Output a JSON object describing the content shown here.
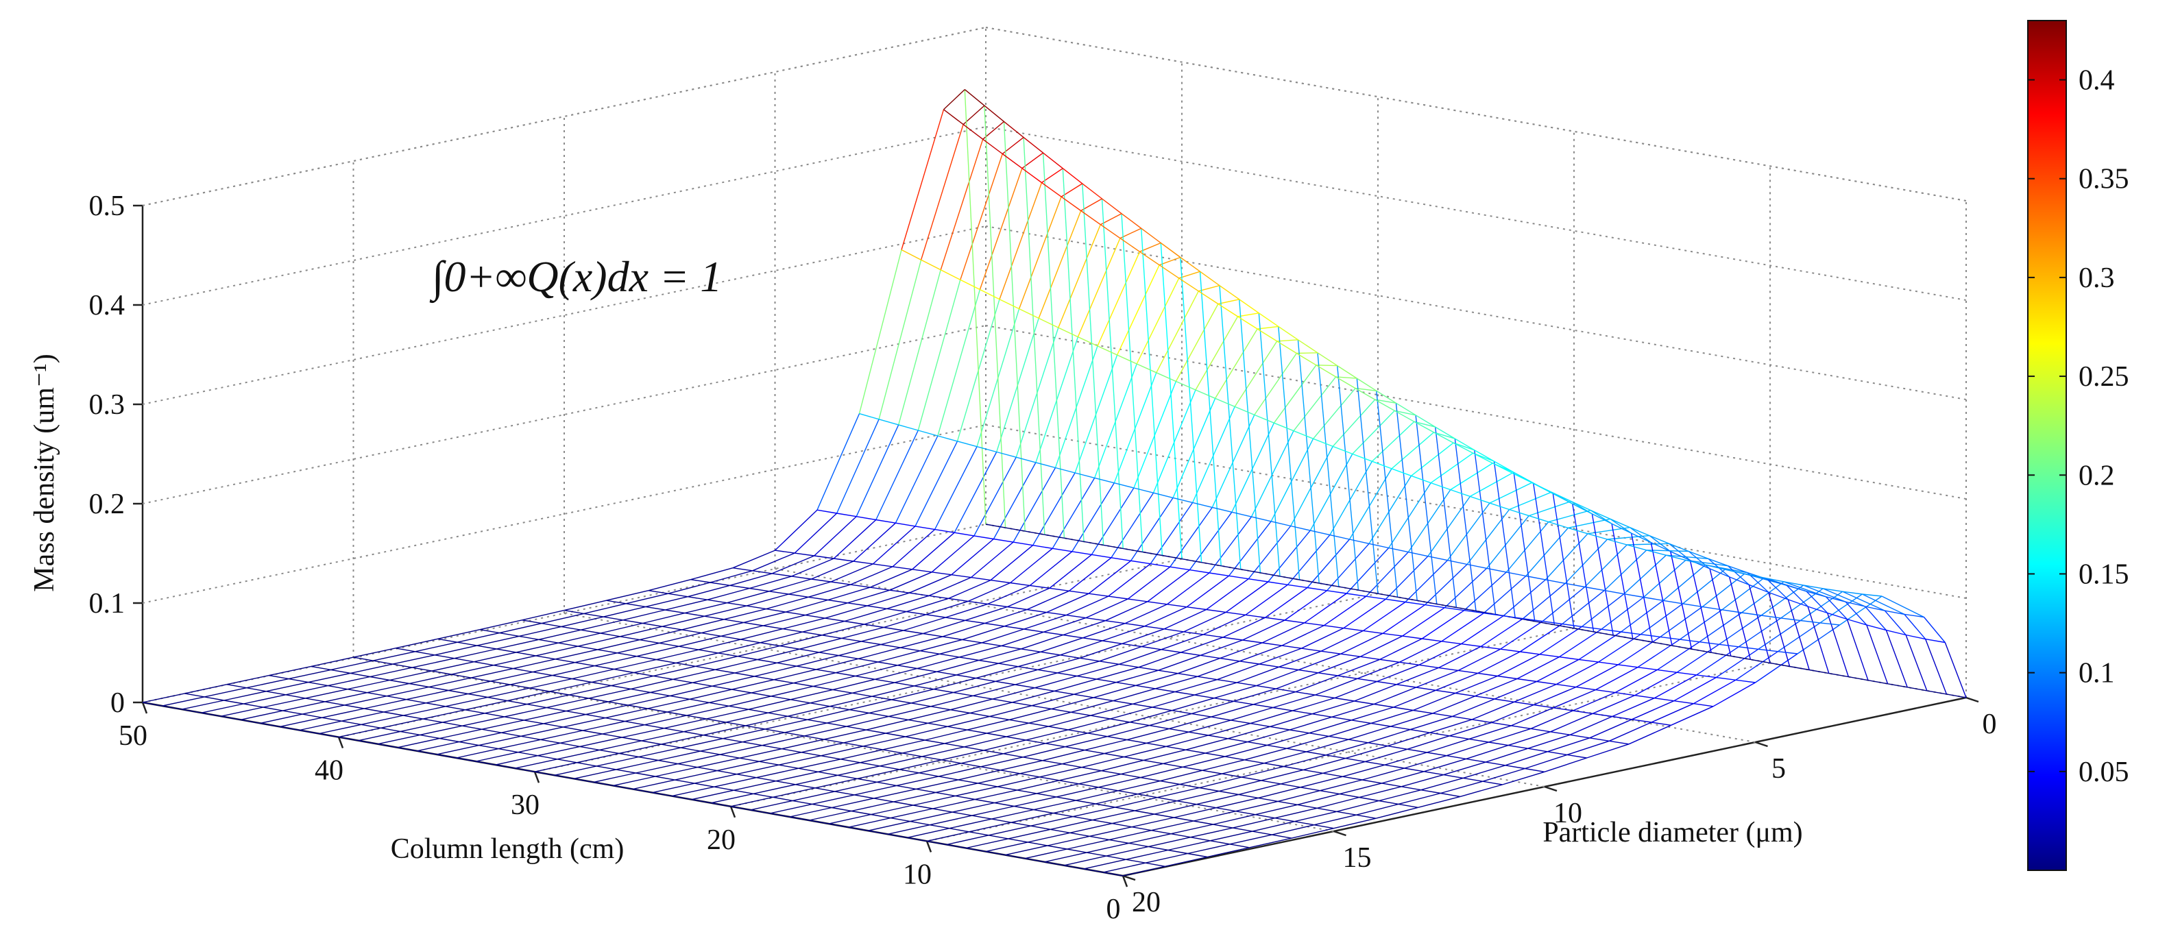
{
  "chart_data": {
    "type": "surface",
    "render": "wireframe mesh",
    "colormap": "jet",
    "axes": {
      "x": {
        "label": "Particle diameter (μm)",
        "ticks": [
          0,
          5,
          10,
          15,
          20
        ],
        "range": [
          0,
          20
        ]
      },
      "y": {
        "label": "Column length (cm)",
        "ticks": [
          0,
          10,
          20,
          30,
          40,
          50
        ],
        "range": [
          0,
          50
        ]
      },
      "z": {
        "label": "Mass density (um⁻¹)",
        "ticks": [
          0,
          0.1,
          0.2,
          0.3,
          0.4,
          0.5
        ],
        "range": [
          0,
          0.5
        ]
      }
    },
    "grid": true,
    "annotation": "∫0+∞Q(x)dx = 1",
    "colorbar": {
      "position": "right",
      "ticks": [
        0.05,
        0.1,
        0.15,
        0.2,
        0.25,
        0.3,
        0.35,
        0.4
      ],
      "range": [
        0,
        0.43
      ]
    },
    "surface": {
      "diameter_um": [
        0,
        0.5,
        1,
        2,
        3,
        4,
        5,
        6,
        7,
        8,
        9,
        10,
        11,
        12,
        13,
        14,
        15,
        16,
        17,
        18,
        19,
        20
      ],
      "column_length_cm": [
        0,
        5,
        10,
        15,
        20,
        25,
        30,
        35,
        40,
        45,
        50
      ],
      "at_column_length_0": [
        0,
        0.06,
        0.09,
        0.12,
        0.1,
        0.08,
        0.06,
        0.045,
        0.035,
        0.025,
        0.02,
        0.015,
        0.011,
        0.008,
        0.006,
        0.004,
        0.003,
        0.002,
        0.0015,
        0.001,
        0.0005,
        0
      ],
      "peak_density": 0.43,
      "peak_location": {
        "diameter_um": 0.5,
        "column_length_cm": 50
      }
    }
  }
}
